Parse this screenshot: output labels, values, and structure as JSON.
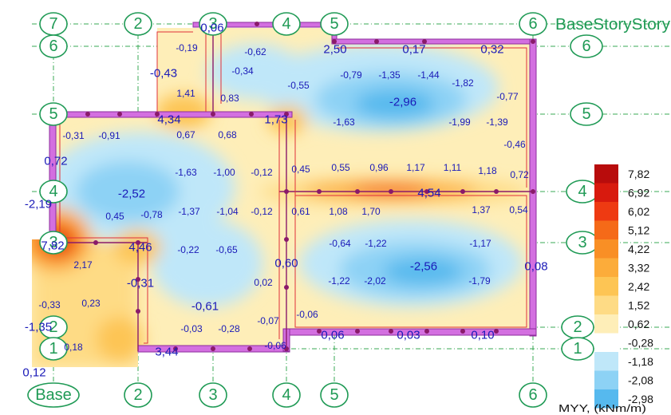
{
  "grid_labels": {
    "top": [
      "7",
      "6",
      "2",
      "3",
      "4",
      "5",
      "6"
    ],
    "bottom": [
      "Base",
      "2",
      "3",
      "4",
      "5",
      "6"
    ],
    "left": [
      "5",
      "4",
      "3",
      "2",
      "1"
    ],
    "right": [
      "6",
      "5",
      "4",
      "3",
      "2",
      "1"
    ],
    "top_right_stack": "BaseStoryStory"
  },
  "legend": {
    "title": "MYY, (kNm/m)",
    "levels": [
      {
        "label": "7,82",
        "color": "#b80c0c"
      },
      {
        "label": "6,92",
        "color": "#d81a0e"
      },
      {
        "label": "6,02",
        "color": "#ee3a12"
      },
      {
        "label": "5,12",
        "color": "#f56a18"
      },
      {
        "label": "4,22",
        "color": "#f98f25"
      },
      {
        "label": "3,32",
        "color": "#fcac3a"
      },
      {
        "label": "2,42",
        "color": "#fdc554"
      },
      {
        "label": "1,52",
        "color": "#fedb85"
      },
      {
        "label": "0,62",
        "color": "#feeeb8"
      },
      {
        "label": "-0,28",
        "color": "#ffffff"
      },
      {
        "label": "-1,18",
        "color": "#bfe7f9"
      },
      {
        "label": "-2,08",
        "color": "#8dd2f5"
      },
      {
        "label": "-2,98",
        "color": "#56b9ee"
      }
    ]
  },
  "values_large": [
    "0,06",
    "2,50",
    "0,17",
    "0,32",
    "-0,43",
    "-2,96",
    "4,34",
    "1,73",
    "0,72",
    "-2,52",
    "4,54",
    "-2,19",
    "7,82",
    "4,46",
    "-2,56",
    "0,60",
    "0,08",
    "-0,31",
    "-0,61",
    "-1,35",
    "3,44",
    "0,06",
    "0,03",
    "0,10",
    "0,12"
  ],
  "values_small": [
    "-0,19",
    "-0,62",
    "-0,34",
    "-0,79",
    "-1,35",
    "-1,44",
    "-1,82",
    "1,41",
    "0,83",
    "-0,55",
    "-0,77",
    "-1,63",
    "-1,99",
    "-1,39",
    "-0,31",
    "-0,91",
    "0,67",
    "0,68",
    "-0,46",
    "-1,63",
    "-1,00",
    "-0,12",
    "0,45",
    "0,55",
    "0,96",
    "1,17",
    "1,11",
    "1,18",
    "0,72",
    "0,45",
    "-0,78",
    "-1,37",
    "-1,04",
    "-0,12",
    "0,61",
    "1,08",
    "1,70",
    "1,37",
    "0,54",
    "-0,22",
    "-0,65",
    "-0,64",
    "-1,22",
    "-1,17",
    "2,17",
    "0,02",
    "-1,22",
    "-2,02",
    "-1,79",
    "-0,33",
    "0,23",
    "-0,06",
    "-0,03",
    "-0,28",
    "-0,07",
    "0,18",
    "-0,06"
  ]
}
